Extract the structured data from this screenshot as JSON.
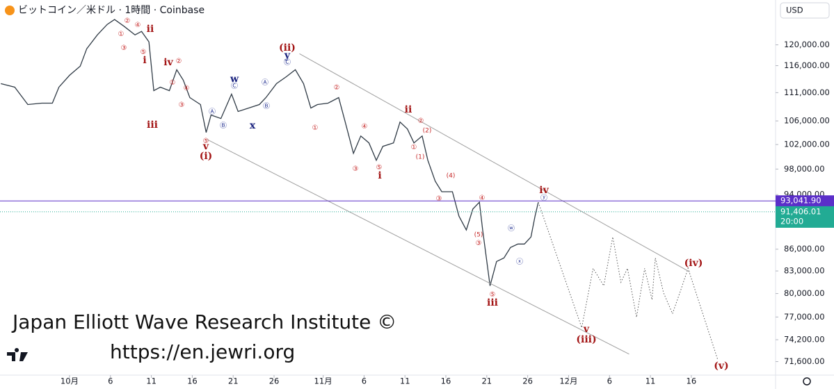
{
  "chart_data": {
    "type": "line",
    "title": "ビットコイン／米ドル · 1時間 · Coinbase",
    "currency": "USD",
    "log_scale": true,
    "xlim": [
      -8.5,
      86.3
    ],
    "ylim": [
      70040,
      129100
    ],
    "xticks": [
      {
        "value": 0,
        "label": "10月"
      },
      {
        "value": 5,
        "label": "6"
      },
      {
        "value": 10,
        "label": "11"
      },
      {
        "value": 15,
        "label": "16"
      },
      {
        "value": 20,
        "label": "21"
      },
      {
        "value": 25,
        "label": "26"
      },
      {
        "value": 31,
        "label": "11月"
      },
      {
        "value": 36,
        "label": "6"
      },
      {
        "value": 41,
        "label": "11"
      },
      {
        "value": 46,
        "label": "16"
      },
      {
        "value": 51,
        "label": "21"
      },
      {
        "value": 56,
        "label": "26"
      },
      {
        "value": 61,
        "label": "12月"
      },
      {
        "value": 66,
        "label": "6"
      },
      {
        "value": 71,
        "label": "11"
      },
      {
        "value": 76,
        "label": "16"
      }
    ],
    "yticks": [
      {
        "value": 120000,
        "label": "120,000.00"
      },
      {
        "value": 116000,
        "label": "116,000.00"
      },
      {
        "value": 111000,
        "label": "111,000.00"
      },
      {
        "value": 106000,
        "label": "106,000.00"
      },
      {
        "value": 102000,
        "label": "102,000.00"
      },
      {
        "value": 98000,
        "label": "98,000.00"
      },
      {
        "value": 94000,
        "label": "94,000.00"
      },
      {
        "value": 86000,
        "label": "86,000.00"
      },
      {
        "value": 83000,
        "label": "83,000.00"
      },
      {
        "value": 80000,
        "label": "80,000.00"
      },
      {
        "value": 77000,
        "label": "77,000.00"
      },
      {
        "value": 74200,
        "label": "74,200.00"
      },
      {
        "value": 71600,
        "label": "71,600.00"
      }
    ],
    "series": [
      {
        "color": "#2f3a45",
        "line_style": "solid",
        "x": [
          -8.4,
          -6.7,
          -5.1,
          -3.4,
          -2.1,
          -1.3,
          0,
          1.3,
          2.1,
          3.4,
          4.6,
          5.5,
          6.7,
          8.0,
          8.8,
          9.7,
          10.3,
          11.1,
          12.2,
          13.1,
          13.9,
          14.7,
          16.0,
          16.7,
          17.3,
          18.5,
          19.8,
          20.6,
          21.9,
          23.2,
          24.0,
          25.3,
          26.5,
          27.6,
          28.6,
          29.5,
          30.3,
          31.6,
          32.9,
          33.7,
          34.7,
          35.6,
          36.6,
          37.5,
          38.3,
          39.6,
          40.4,
          41.3,
          42.1,
          43.1,
          43.8,
          44.7,
          45.5,
          46.8,
          47.6,
          48.5,
          49.3,
          50.1,
          50.5,
          51.4,
          52.2,
          53.1,
          53.9,
          54.8,
          55.6,
          56.4,
          56.9,
          57.3
        ],
        "values": [
          112640,
          112000,
          108870,
          109120,
          109120,
          112000,
          114190,
          115890,
          119240,
          121970,
          124060,
          125060,
          123640,
          121970,
          122660,
          120590,
          111370,
          112000,
          111370,
          115230,
          113290,
          110110,
          108870,
          104030,
          107020,
          106420,
          110740,
          107640,
          108250,
          108870,
          110110,
          112640,
          113930,
          115230,
          112640,
          108250,
          108870,
          109120,
          110110,
          105810,
          100540,
          103430,
          102270,
          99410,
          101690,
          102270,
          105810,
          104620,
          102270,
          103430,
          99410,
          96080,
          94450,
          94450,
          90770,
          88730,
          91820,
          92850,
          88730,
          81020,
          84300,
          84770,
          86240,
          86730,
          86730,
          87720,
          90770,
          92850
        ]
      },
      {
        "color": "#555555",
        "line_style": "dotted",
        "x": [
          57.3,
          62.6,
          64.0,
          65.3,
          66.4,
          67.4,
          68.2,
          69.3,
          70.3,
          71.2,
          71.6,
          72.6,
          73.7,
          74.6,
          75.6,
          79.2
        ],
        "values": [
          92850,
          75680,
          83350,
          81020,
          87720,
          81490,
          83350,
          76980,
          83350,
          79200,
          84770,
          80110,
          77420,
          80110,
          83350,
          71910
        ]
      },
      {
        "color": "#9e9e9e",
        "line_style": "solid",
        "x": [
          28.1,
          75.8
        ],
        "values": [
          118280,
          82880
        ]
      },
      {
        "color": "#9e9e9e",
        "line_style": "solid",
        "x": [
          16.8,
          68.4
        ],
        "values": [
          102850,
          72480
        ]
      }
    ],
    "hline": {
      "value": 93041.9,
      "label": "93,041.90",
      "color": "#5b2fc9"
    },
    "last_price": {
      "value": 91406.01,
      "label": "91,406.01",
      "time": "20:00",
      "color": "#22ab94"
    },
    "annotations": [
      {
        "text": "ii",
        "color": "#a31515"
      },
      {
        "text": "i",
        "color": "#a31515"
      },
      {
        "text": "iii",
        "color": "#a31515"
      },
      {
        "text": "iv",
        "color": "#a31515"
      },
      {
        "text": "v",
        "color": "#a31515"
      },
      {
        "text": "(i)",
        "color": "#a31515"
      },
      {
        "text": "(ii)",
        "color": "#a31515"
      },
      {
        "text": "ii",
        "color": "#a31515"
      },
      {
        "text": "i",
        "color": "#a31515"
      },
      {
        "text": "iii",
        "color": "#a31515"
      },
      {
        "text": "iv",
        "color": "#a31515"
      },
      {
        "text": "v",
        "color": "#a31515"
      },
      {
        "text": "(iii)",
        "color": "#a31515"
      },
      {
        "text": "(iv)",
        "color": "#a31515"
      },
      {
        "text": "(v)",
        "color": "#a31515"
      },
      {
        "text": "y",
        "color": "#1a237e"
      },
      {
        "text": "w",
        "color": "#1a237e"
      },
      {
        "text": "x",
        "color": "#1a237e"
      },
      {
        "text": "①",
        "color": "#c62828"
      },
      {
        "text": "②",
        "color": "#c62828"
      },
      {
        "text": "③",
        "color": "#c62828"
      },
      {
        "text": "④",
        "color": "#c62828"
      },
      {
        "text": "⑤",
        "color": "#c62828"
      },
      {
        "text": "①",
        "color": "#c62828"
      },
      {
        "text": "②",
        "color": "#c62828"
      },
      {
        "text": "③",
        "color": "#c62828"
      },
      {
        "text": "④",
        "color": "#c62828"
      },
      {
        "text": "⑤",
        "color": "#c62828"
      },
      {
        "text": "①",
        "color": "#c62828"
      },
      {
        "text": "②",
        "color": "#c62828"
      },
      {
        "text": "③",
        "color": "#c62828"
      },
      {
        "text": "④",
        "color": "#c62828"
      },
      {
        "text": "⑤",
        "color": "#c62828"
      },
      {
        "text": "①",
        "color": "#c62828"
      },
      {
        "text": "②",
        "color": "#c62828"
      },
      {
        "text": "③",
        "color": "#c62828"
      },
      {
        "text": "④",
        "color": "#c62828"
      },
      {
        "text": "⑤",
        "color": "#c62828"
      },
      {
        "text": "③",
        "color": "#c62828"
      },
      {
        "text": "(1)",
        "color": "#c62828"
      },
      {
        "text": "(2)",
        "color": "#c62828"
      },
      {
        "text": "(4)",
        "color": "#c62828"
      },
      {
        "text": "(5)",
        "color": "#c62828"
      },
      {
        "text": "Ⓐ",
        "color": "#283593"
      },
      {
        "text": "Ⓑ",
        "color": "#283593"
      },
      {
        "text": "Ⓒ",
        "color": "#283593"
      },
      {
        "text": "Ⓐ",
        "color": "#283593"
      },
      {
        "text": "Ⓑ",
        "color": "#283593"
      },
      {
        "text": "Ⓒ",
        "color": "#283593"
      },
      {
        "text": "ⓦ",
        "color": "#283593"
      },
      {
        "text": "ⓧ",
        "color": "#283593"
      },
      {
        "text": "ⓨ",
        "color": "#283593"
      }
    ],
    "watermark": [
      "Japan Elliott Wave Research Institute ©",
      "https://en.jewri.org"
    ]
  }
}
